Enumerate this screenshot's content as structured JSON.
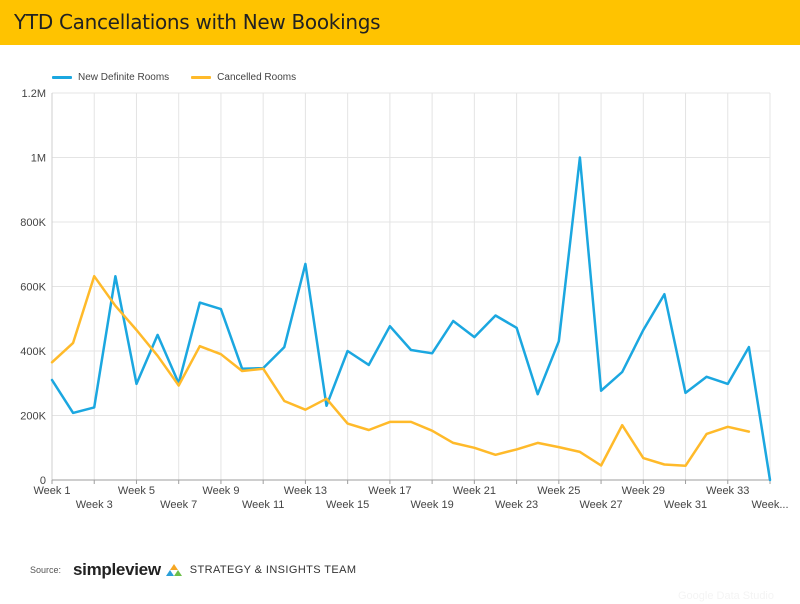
{
  "header": {
    "title": "YTD Cancellations with New Bookings",
    "background": "#ffc300"
  },
  "legend": [
    {
      "label": "New Definite Rooms",
      "color": "#1ba7e0"
    },
    {
      "label": "Cancelled Rooms",
      "color": "#ffba2a"
    }
  ],
  "footer": {
    "source_label": "Source:",
    "brand": "simpleview",
    "team": "STRATEGY & INSIGHTS TEAM"
  },
  "watermark": "Google Data Studio",
  "chart_data": {
    "type": "line",
    "x": [
      "Week 1",
      "Week 2",
      "Week 3",
      "Week 4",
      "Week 5",
      "Week 6",
      "Week 7",
      "Week 8",
      "Week 9",
      "Week 10",
      "Week 11",
      "Week 12",
      "Week 13",
      "Week 14",
      "Week 15",
      "Week 16",
      "Week 17",
      "Week 18",
      "Week 19",
      "Week 20",
      "Week 21",
      "Week 22",
      "Week 23",
      "Week 24",
      "Week 25",
      "Week 26",
      "Week 27",
      "Week 28",
      "Week 29",
      "Week 30",
      "Week 31",
      "Week 32",
      "Week 33",
      "Week 34",
      "Week..."
    ],
    "x_tick_labels_row1": [
      "Week 1",
      "Week 5",
      "Week 9",
      "Week 13",
      "Week 17",
      "Week 21",
      "Week 25",
      "Week 29",
      "Week 33"
    ],
    "x_tick_labels_row2": [
      "Week 3",
      "Week 7",
      "Week 11",
      "Week 15",
      "Week 19",
      "Week 23",
      "Week 27",
      "Week 31",
      "Week..."
    ],
    "ylim": [
      0,
      1200000
    ],
    "y_ticks": [
      {
        "value": 0,
        "label": "0"
      },
      {
        "value": 200000,
        "label": "200K"
      },
      {
        "value": 400000,
        "label": "400K"
      },
      {
        "value": 600000,
        "label": "600K"
      },
      {
        "value": 800000,
        "label": "800K"
      },
      {
        "value": 1000000,
        "label": "1M"
      },
      {
        "value": 1200000,
        "label": "1.2M"
      }
    ],
    "grid": true,
    "legend_position": "top-left",
    "series": [
      {
        "name": "New Definite Rooms",
        "color": "#1ba7e0",
        "values": [
          310000,
          208000,
          225000,
          632000,
          298000,
          450000,
          300000,
          550000,
          530000,
          345000,
          347000,
          412000,
          670000,
          230000,
          400000,
          357000,
          477000,
          403000,
          393000,
          493000,
          443000,
          510000,
          472000,
          266000,
          430000,
          1000000,
          277000,
          335000,
          465000,
          576000,
          270000,
          320000,
          298000,
          412000,
          0
        ]
      },
      {
        "name": "Cancelled Rooms",
        "color": "#ffba2a",
        "values": [
          365000,
          425000,
          632000,
          540000,
          465000,
          385000,
          293000,
          415000,
          390000,
          338000,
          345000,
          245000,
          218000,
          252000,
          175000,
          155000,
          180000,
          180000,
          153000,
          115000,
          100000,
          78000,
          95000,
          115000,
          102000,
          87000,
          45000,
          170000,
          68000,
          48000,
          44000,
          143000,
          165000,
          150000,
          null
        ]
      }
    ]
  }
}
